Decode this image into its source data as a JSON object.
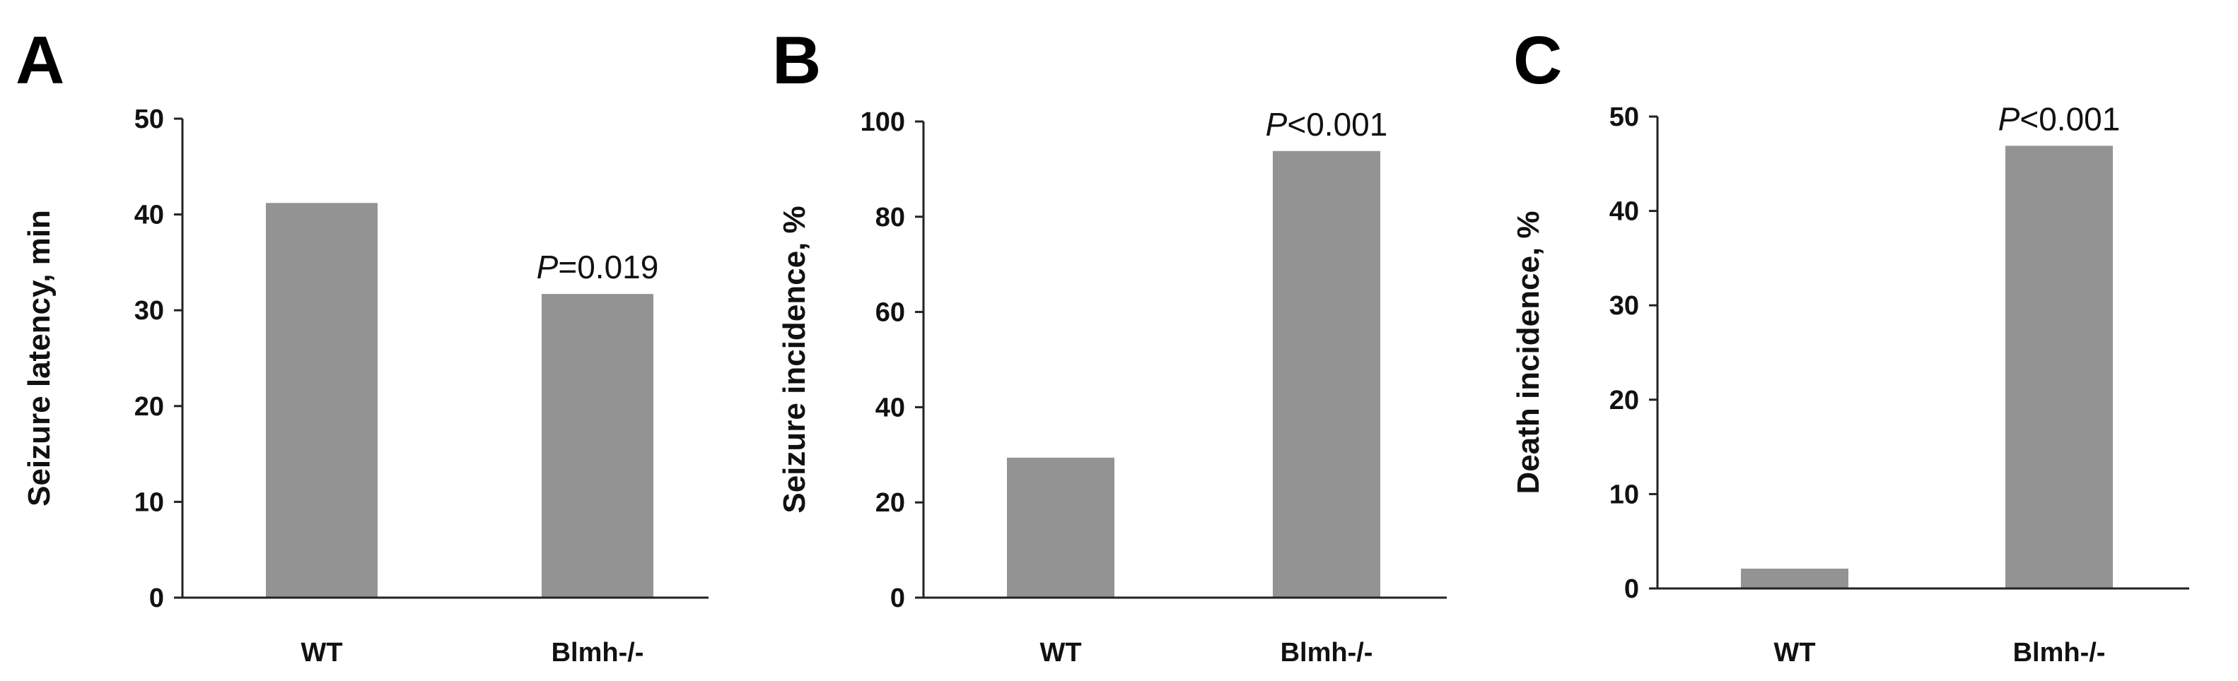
{
  "chart_data": [
    {
      "panel": "A",
      "type": "bar",
      "categories": [
        "WT",
        "Blmh-/-"
      ],
      "values": [
        41.2,
        31.7
      ],
      "ylabel": "Seizure latency, min",
      "ylim": [
        0,
        50
      ],
      "yticks": [
        "0",
        "10",
        "20",
        "30",
        "40",
        "50"
      ],
      "annotation": {
        "category": "Blmh-/-",
        "p_symbol": "P",
        "p_rest": "=0.019"
      },
      "colors": {
        "bar": "#939393",
        "axis": "#222222"
      }
    },
    {
      "panel": "B",
      "type": "bar",
      "categories": [
        "WT",
        "Blmh-/-"
      ],
      "values": [
        29.4,
        93.8
      ],
      "ylabel": "Seizure incidence, %",
      "ylim": [
        0,
        100
      ],
      "yticks": [
        "0",
        "20",
        "40",
        "60",
        "80",
        "100"
      ],
      "annotation": {
        "category": "Blmh-/-",
        "p_symbol": "P",
        "p_rest": "<0.001"
      },
      "colors": {
        "bar": "#939393",
        "axis": "#222222"
      }
    },
    {
      "panel": "C",
      "type": "bar",
      "categories": [
        "WT",
        "Blmh-/-"
      ],
      "values": [
        2.1,
        46.9
      ],
      "ylabel": "Death incidence, %",
      "ylim": [
        0,
        50
      ],
      "yticks": [
        "0",
        "10",
        "20",
        "30",
        "40",
        "50"
      ],
      "annotation": {
        "category": "Blmh-/-",
        "p_symbol": "P",
        "p_rest": "<0.001"
      },
      "colors": {
        "bar": "#939393",
        "axis": "#222222"
      }
    }
  ]
}
